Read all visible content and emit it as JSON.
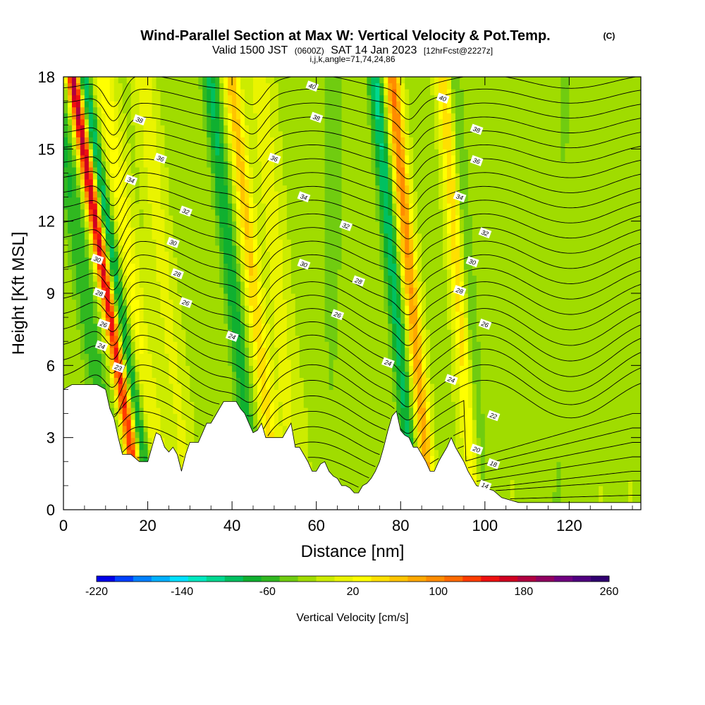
{
  "header": {
    "title": "Wind-Parallel Section at Max W: Vertical Velocity & Pot.Temp.",
    "title_mark": "(C)",
    "valid_prefix": "Valid 1500 JST",
    "valid_utc": "(0600Z)",
    "valid_date": "SAT 14 Jan 2023",
    "forecast": "[12hrFcst@2227z]",
    "indices": "i,j,k,angle=71,74,24,86"
  },
  "chart_data": {
    "type": "heatmap",
    "title": "Wind-Parallel Section at Max W: Vertical Velocity & Pot.Temp.",
    "xlabel": "Distance [nm]",
    "ylabel": "Height [Kft MSL]",
    "xlim": [
      0,
      137
    ],
    "ylim": [
      0,
      18
    ],
    "xticks": [
      0,
      20,
      40,
      60,
      80,
      100,
      120
    ],
    "yticks": [
      0,
      3,
      6,
      9,
      12,
      15,
      18
    ],
    "colorbar": {
      "label": "Vertical Velocity [cm/s]",
      "min": -220,
      "max": 260,
      "step": 20,
      "tick_labels": [
        "-220",
        "-140",
        "-60",
        "20",
        "100",
        "180",
        "260"
      ],
      "colors": [
        "#0000e8",
        "#0040ff",
        "#0080ff",
        "#00b0ff",
        "#00e0ff",
        "#00e8c0",
        "#00d890",
        "#00c060",
        "#10b030",
        "#30b820",
        "#70cc10",
        "#a0dc00",
        "#ccec00",
        "#eaf400",
        "#ffff00",
        "#ffe000",
        "#ffc400",
        "#ffa800",
        "#ff8c00",
        "#ff6a00",
        "#ff3c00",
        "#ee1010",
        "#d00020",
        "#b00040",
        "#900060",
        "#700080",
        "#500080",
        "#300070"
      ]
    },
    "background_velocity": 14,
    "velocity_bands": [
      {
        "name": "updraft",
        "x_center": 13.0,
        "slope": -0.9,
        "amplitude": 250,
        "width": 1.6
      },
      {
        "name": "downdraft",
        "x_center": 15.5,
        "slope": -0.9,
        "amplitude": -110,
        "width": 1.6
      },
      {
        "name": "updraft",
        "x_center": 19.0,
        "slope": -0.8,
        "amplitude": 60,
        "width": 2.5
      },
      {
        "name": "updraft",
        "x_center": 26.0,
        "slope": -0.6,
        "amplitude": 40,
        "width": 2.5
      },
      {
        "name": "downdraft",
        "x_center": 7.5,
        "slope": -0.8,
        "amplitude": -60,
        "width": 2.5
      },
      {
        "name": "updraft",
        "x_center": 47.0,
        "slope": -0.6,
        "amplitude": 100,
        "width": 2.0
      },
      {
        "name": "downdraft",
        "x_center": 42.0,
        "slope": -0.6,
        "amplitude": -80,
        "width": 2.0
      },
      {
        "name": "updraft",
        "x_center": 52.5,
        "slope": -0.5,
        "amplitude": 40,
        "width": 2.8
      },
      {
        "name": "updraft",
        "x_center": 84.0,
        "slope": -0.5,
        "amplitude": 150,
        "width": 1.8
      },
      {
        "name": "downdraft",
        "x_center": 80.0,
        "slope": -0.5,
        "amplitude": -100,
        "width": 1.8
      },
      {
        "name": "updraft",
        "x_center": 95.0,
        "slope": -0.4,
        "amplitude": 90,
        "width": 1.8
      },
      {
        "name": "downdraft",
        "x_center": 97.5,
        "slope": -0.4,
        "amplitude": -40,
        "width": 1.6
      },
      {
        "name": "downdraft",
        "x_center": 64.0,
        "slope": 0.0,
        "amplitude": -20,
        "width": 3.5
      },
      {
        "name": "downdraft",
        "x_center": 119.0,
        "slope": 0.0,
        "amplitude": -15,
        "width": 4.5
      }
    ],
    "terrain_heights_kft": [
      [
        0,
        5.0
      ],
      [
        1,
        5.1
      ],
      [
        2,
        5.2
      ],
      [
        4,
        5.2
      ],
      [
        6,
        5.2
      ],
      [
        8,
        5.2
      ],
      [
        10,
        5.0
      ],
      [
        11,
        4.2
      ],
      [
        12,
        3.8
      ],
      [
        13,
        3.0
      ],
      [
        14,
        2.3
      ],
      [
        16,
        2.3
      ],
      [
        18,
        2.0
      ],
      [
        20,
        2.0
      ],
      [
        21,
        2.6
      ],
      [
        22,
        3.2
      ],
      [
        23,
        3.1
      ],
      [
        24,
        2.6
      ],
      [
        25,
        2.4
      ],
      [
        26,
        2.6
      ],
      [
        27,
        2.3
      ],
      [
        28,
        1.6
      ],
      [
        29,
        2.3
      ],
      [
        30,
        2.8
      ],
      [
        31,
        2.8
      ],
      [
        32,
        2.8
      ],
      [
        33,
        3.2
      ],
      [
        34,
        3.6
      ],
      [
        35,
        3.6
      ],
      [
        36,
        3.9
      ],
      [
        37,
        4.2
      ],
      [
        38,
        4.5
      ],
      [
        39,
        4.5
      ],
      [
        40,
        4.5
      ],
      [
        41,
        4.5
      ],
      [
        42,
        4.2
      ],
      [
        43,
        4.0
      ],
      [
        44,
        3.6
      ],
      [
        45,
        3.2
      ],
      [
        46,
        3.3
      ],
      [
        47,
        3.6
      ],
      [
        48,
        3.0
      ],
      [
        49,
        3.0
      ],
      [
        50,
        3.0
      ],
      [
        51,
        3.0
      ],
      [
        52,
        3.0
      ],
      [
        53,
        3.3
      ],
      [
        54,
        3.6
      ],
      [
        55,
        2.6
      ],
      [
        56,
        2.6
      ],
      [
        57,
        2.3
      ],
      [
        58,
        2.0
      ],
      [
        59,
        1.6
      ],
      [
        60,
        1.6
      ],
      [
        61,
        1.9
      ],
      [
        62,
        2.0
      ],
      [
        63,
        1.6
      ],
      [
        64,
        1.4
      ],
      [
        65,
        1.3
      ],
      [
        66,
        1.0
      ],
      [
        67,
        1.0
      ],
      [
        68,
        0.9
      ],
      [
        69,
        0.7
      ],
      [
        70,
        0.7
      ],
      [
        71,
        1.0
      ],
      [
        72,
        1.1
      ],
      [
        73,
        1.3
      ],
      [
        74,
        1.6
      ],
      [
        75,
        2.0
      ],
      [
        76,
        2.6
      ],
      [
        77,
        3.3
      ],
      [
        78,
        3.9
      ],
      [
        79,
        4.1
      ],
      [
        80,
        3.3
      ],
      [
        81,
        3.1
      ],
      [
        82,
        3.0
      ],
      [
        83,
        2.6
      ],
      [
        84,
        2.6
      ],
      [
        85,
        2.3
      ],
      [
        86,
        2.0
      ],
      [
        87,
        1.6
      ],
      [
        88,
        1.6
      ],
      [
        89,
        2.0
      ],
      [
        90,
        2.3
      ],
      [
        91,
        2.6
      ],
      [
        92,
        3.0
      ],
      [
        93,
        2.6
      ],
      [
        94,
        2.3
      ],
      [
        95,
        2.0
      ],
      [
        96,
        1.6
      ],
      [
        97,
        1.3
      ],
      [
        98,
        1.0
      ],
      [
        100,
        0.9
      ],
      [
        102,
        0.8
      ],
      [
        104,
        0.5
      ],
      [
        106,
        0.4
      ],
      [
        108,
        0.3
      ],
      [
        110,
        0.3
      ],
      [
        115,
        0.3
      ],
      [
        120,
        0.3
      ],
      [
        125,
        0.3
      ],
      [
        130,
        0.3
      ],
      [
        137,
        0.3
      ]
    ],
    "theta_contours": {
      "labeled_values": [
        14,
        18,
        20,
        22,
        23,
        24,
        26,
        28,
        30,
        32,
        34,
        36,
        38,
        40
      ],
      "labels": [
        {
          "text": "40",
          "x": 59,
          "y": 17.6
        },
        {
          "text": "40",
          "x": 90,
          "y": 17.1
        },
        {
          "text": "38",
          "x": 18,
          "y": 16.2
        },
        {
          "text": "38",
          "x": 60,
          "y": 16.3
        },
        {
          "text": "38",
          "x": 98,
          "y": 15.8
        },
        {
          "text": "36",
          "x": 23,
          "y": 14.6
        },
        {
          "text": "36",
          "x": 50,
          "y": 14.6
        },
        {
          "text": "36",
          "x": 98,
          "y": 14.5
        },
        {
          "text": "34",
          "x": 16,
          "y": 13.7
        },
        {
          "text": "34",
          "x": 57,
          "y": 13.0
        },
        {
          "text": "34",
          "x": 94,
          "y": 13.0
        },
        {
          "text": "32",
          "x": 29,
          "y": 12.4
        },
        {
          "text": "32",
          "x": 67,
          "y": 11.8
        },
        {
          "text": "32",
          "x": 100,
          "y": 11.5
        },
        {
          "text": "30",
          "x": 26,
          "y": 11.1
        },
        {
          "text": "30",
          "x": 57,
          "y": 10.2
        },
        {
          "text": "30",
          "x": 97,
          "y": 10.3
        },
        {
          "text": "30",
          "x": 8,
          "y": 10.4
        },
        {
          "text": "28",
          "x": 27,
          "y": 9.8
        },
        {
          "text": "28",
          "x": 70,
          "y": 9.5
        },
        {
          "text": "28",
          "x": 94,
          "y": 9.1
        },
        {
          "text": "28",
          "x": 8.5,
          "y": 9.0
        },
        {
          "text": "26",
          "x": 29,
          "y": 8.6
        },
        {
          "text": "26",
          "x": 65,
          "y": 8.1
        },
        {
          "text": "26",
          "x": 100,
          "y": 7.7
        },
        {
          "text": "26",
          "x": 9.5,
          "y": 7.7
        },
        {
          "text": "24",
          "x": 40,
          "y": 7.2
        },
        {
          "text": "24",
          "x": 77,
          "y": 6.1
        },
        {
          "text": "24",
          "x": 92,
          "y": 5.4
        },
        {
          "text": "24",
          "x": 9,
          "y": 6.8
        },
        {
          "text": "23",
          "x": 13,
          "y": 5.9
        },
        {
          "text": "22",
          "x": 102,
          "y": 3.9
        },
        {
          "text": "20",
          "x": 98,
          "y": 2.5
        },
        {
          "text": "18",
          "x": 102,
          "y": 1.9
        },
        {
          "text": "14",
          "x": 100,
          "y": 1.0
        }
      ]
    },
    "legend": "bottom"
  }
}
